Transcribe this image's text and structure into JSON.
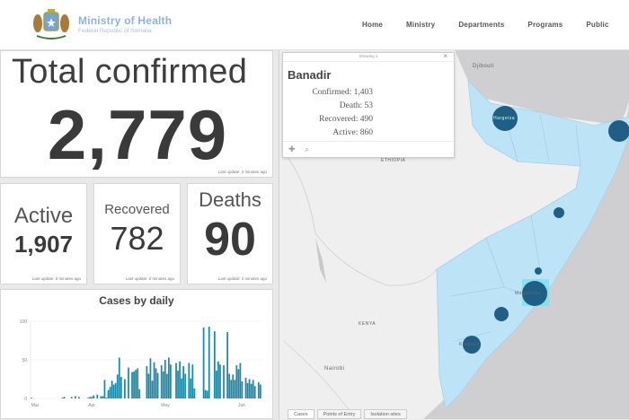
{
  "header": {
    "brand_title": "Ministry of Health",
    "brand_subtitle": "Federal Republic of Somalia",
    "nav": [
      "Home",
      "Ministry",
      "Departments",
      "Programs",
      "Public"
    ]
  },
  "stats": {
    "total": {
      "label": "Total confirmed",
      "value": "2,779",
      "updated": "Last update: 2 minutes ago"
    },
    "active": {
      "label": "Active",
      "value": "1,907",
      "updated": "Last update: 2 minutes ago"
    },
    "recovered": {
      "label": "Recovered",
      "value": "782",
      "updated": "Last update: 2 minutes ago"
    },
    "deaths": {
      "label": "Deaths",
      "value": "90",
      "updated": "Last update: 2 minutes ago"
    }
  },
  "chart_data": {
    "type": "bar",
    "title": "Cases by daily",
    "xlabel": "",
    "ylabel": "",
    "ylim": [
      0,
      100
    ],
    "yticks": [
      0,
      50,
      100
    ],
    "xtick_labels": [
      "Mar",
      "Apr",
      "May",
      "Jun"
    ],
    "grid": true,
    "color": "#1a88a8",
    "values": [
      1,
      0,
      0,
      0,
      0,
      0,
      0,
      0,
      0,
      0,
      0,
      0,
      0,
      0,
      0,
      0,
      0,
      1,
      2,
      0,
      0,
      0,
      2,
      0,
      3,
      0,
      2,
      0,
      0,
      0,
      0,
      1,
      2,
      2,
      4,
      0,
      5,
      0,
      3,
      3,
      24,
      1,
      11,
      15,
      23,
      18,
      20,
      31,
      53,
      28,
      0,
      25,
      0,
      40,
      0,
      34,
      35,
      37,
      39,
      12,
      0,
      0,
      0,
      42,
      32,
      52,
      23,
      47,
      39,
      33,
      0,
      43,
      35,
      50,
      32,
      53,
      44,
      0,
      0,
      46,
      36,
      48,
      26,
      42,
      32,
      0,
      46,
      26,
      44,
      13,
      0,
      0,
      0,
      0,
      92,
      11,
      10,
      93,
      0,
      0,
      87,
      36,
      48,
      44,
      0,
      43,
      0,
      86,
      32,
      24,
      31,
      24,
      43,
      38,
      46,
      22,
      0,
      27,
      20,
      25,
      19,
      24,
      16,
      0,
      21,
      18
    ]
  },
  "map": {
    "popup": {
      "showing": "Showing 1",
      "title": "Banadir",
      "rows": [
        "Confirmed: 1,403",
        "Death: 53",
        "Recovered: 490",
        "Active: 860"
      ]
    },
    "labels": {
      "djibouti": "Djibouti",
      "ethiopia": "ETHIOPIA",
      "kenya": "KENYA",
      "nairobi": "Nairobi",
      "mogadishu": "Mogadishu",
      "hargeisa": "Hargeisa",
      "kismayo": "Kismayo"
    },
    "tabs": [
      "Cases",
      "Points of Entry",
      "Isolation sites"
    ]
  }
}
